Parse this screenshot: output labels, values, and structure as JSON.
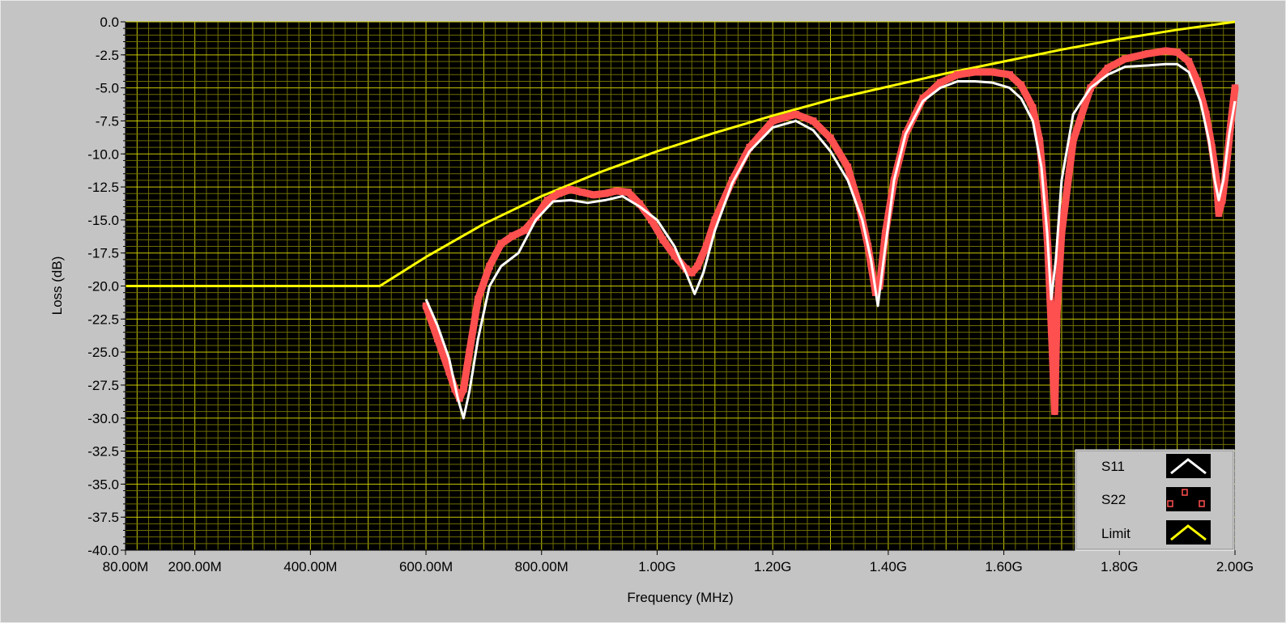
{
  "chart_data": {
    "type": "line",
    "xlabel": "Frequency (MHz)",
    "ylabel": "Loss (dB)",
    "xlim": [
      80,
      2000
    ],
    "ylim": [
      -40,
      0
    ],
    "grid": true,
    "legend_position": "bottom-right",
    "x_ticks": [
      {
        "value": 80,
        "label": "80.00M"
      },
      {
        "value": 200,
        "label": "200.00M"
      },
      {
        "value": 400,
        "label": "400.00M"
      },
      {
        "value": 600,
        "label": "600.00M"
      },
      {
        "value": 800,
        "label": "800.00M"
      },
      {
        "value": 1000,
        "label": "1.00G"
      },
      {
        "value": 1200,
        "label": "1.20G"
      },
      {
        "value": 1400,
        "label": "1.40G"
      },
      {
        "value": 1600,
        "label": "1.60G"
      },
      {
        "value": 1800,
        "label": "1.80G"
      },
      {
        "value": 2000,
        "label": "2.00G"
      }
    ],
    "y_ticks": [
      {
        "value": 0,
        "label": "0.0"
      },
      {
        "value": -2.5,
        "label": "-2.5"
      },
      {
        "value": -5,
        "label": "-5.0"
      },
      {
        "value": -7.5,
        "label": "-7.5"
      },
      {
        "value": -10,
        "label": "-10.0"
      },
      {
        "value": -12.5,
        "label": "-12.5"
      },
      {
        "value": -15,
        "label": "-15.0"
      },
      {
        "value": -17.5,
        "label": "-17.5"
      },
      {
        "value": -20,
        "label": "-20.0"
      },
      {
        "value": -22.5,
        "label": "-22.5"
      },
      {
        "value": -25,
        "label": "-25.0"
      },
      {
        "value": -27.5,
        "label": "-27.5"
      },
      {
        "value": -30,
        "label": "-30.0"
      },
      {
        "value": -32.5,
        "label": "-32.5"
      },
      {
        "value": -35,
        "label": "-35.0"
      },
      {
        "value": -37.5,
        "label": "-37.5"
      },
      {
        "value": -40,
        "label": "-40.0"
      }
    ],
    "series": [
      {
        "name": "S11",
        "color": "#ffffff",
        "style": "line",
        "x": [
          600,
          620,
          640,
          655,
          665,
          675,
          690,
          710,
          730,
          760,
          790,
          820,
          850,
          880,
          910,
          940,
          970,
          1000,
          1030,
          1050,
          1065,
          1080,
          1100,
          1130,
          1160,
          1200,
          1240,
          1270,
          1300,
          1330,
          1355,
          1370,
          1382,
          1392,
          1410,
          1430,
          1460,
          1490,
          1520,
          1550,
          1580,
          1610,
          1630,
          1650,
          1665,
          1675,
          1682,
          1690,
          1700,
          1720,
          1750,
          1780,
          1810,
          1850,
          1880,
          1900,
          1920,
          1940,
          1955,
          1965,
          1972,
          1980,
          1990,
          2000
        ],
        "y": [
          -21,
          -23,
          -25.5,
          -28.5,
          -30,
          -28,
          -24,
          -20,
          -18.5,
          -17.5,
          -15,
          -13.6,
          -13.5,
          -13.7,
          -13.5,
          -13.2,
          -14,
          -15,
          -17,
          -19,
          -20.6,
          -19,
          -15.8,
          -12.2,
          -9.8,
          -8,
          -7.5,
          -8.2,
          -9.8,
          -12,
          -15,
          -18,
          -21.5,
          -18,
          -12,
          -8.5,
          -6,
          -5,
          -4.5,
          -4.5,
          -4.6,
          -5,
          -5.8,
          -7.5,
          -11,
          -16,
          -21,
          -18,
          -12,
          -7,
          -5,
          -4,
          -3.4,
          -3.3,
          -3.2,
          -3.2,
          -3.8,
          -6,
          -9,
          -12,
          -13.5,
          -12,
          -8.5,
          -6
        ]
      },
      {
        "name": "S22",
        "color": "#ff5050",
        "style": "markers",
        "x": [
          600,
          620,
          640,
          650,
          658,
          665,
          675,
          690,
          710,
          730,
          750,
          770,
          790,
          810,
          830,
          850,
          870,
          890,
          910,
          930,
          950,
          970,
          990,
          1010,
          1030,
          1050,
          1060,
          1070,
          1085,
          1100,
          1130,
          1160,
          1200,
          1240,
          1270,
          1300,
          1330,
          1350,
          1365,
          1378,
          1385,
          1395,
          1410,
          1430,
          1460,
          1490,
          1520,
          1550,
          1580,
          1610,
          1630,
          1650,
          1662,
          1670,
          1676,
          1680,
          1684,
          1688,
          1692,
          1700,
          1720,
          1750,
          1780,
          1810,
          1850,
          1880,
          1900,
          1920,
          1935,
          1950,
          1960,
          1968,
          1972,
          1978,
          1985,
          1992,
          2000
        ],
        "y": [
          -21.5,
          -24,
          -26.5,
          -27.8,
          -28.5,
          -27.8,
          -25,
          -21,
          -18.5,
          -16.8,
          -16.2,
          -15.8,
          -14.8,
          -13.5,
          -13,
          -12.7,
          -12.9,
          -13.1,
          -13,
          -12.8,
          -12.9,
          -13.8,
          -15,
          -16.5,
          -17.7,
          -18.7,
          -19,
          -18.5,
          -17,
          -15,
          -12,
          -9.5,
          -7.5,
          -7,
          -7.5,
          -8.8,
          -11,
          -14,
          -17,
          -20.5,
          -20,
          -16,
          -12,
          -8.5,
          -5.8,
          -4.6,
          -4,
          -3.8,
          -3.8,
          -4,
          -4.8,
          -6.5,
          -9,
          -13,
          -17,
          -21,
          -25,
          -29.5,
          -22,
          -16,
          -9,
          -5,
          -3.5,
          -2.8,
          -2.4,
          -2.2,
          -2.3,
          -3,
          -4.5,
          -7,
          -9.5,
          -12,
          -14.5,
          -13.5,
          -11,
          -8,
          -5
        ]
      },
      {
        "name": "Limit",
        "color": "#ffff00",
        "style": "line",
        "x": [
          80,
          100,
          150,
          200,
          250,
          300,
          350,
          400,
          450,
          500,
          520,
          600,
          700,
          800,
          900,
          1000,
          1100,
          1200,
          1300,
          1400,
          1500,
          1600,
          1700,
          1800,
          1900,
          2000
        ],
        "y": [
          -20,
          -20,
          -20,
          -20,
          -20,
          -20,
          -20,
          -20,
          -20,
          -20,
          -20,
          -17.8,
          -15.3,
          -13.2,
          -11.4,
          -9.8,
          -8.4,
          -7.1,
          -5.9,
          -4.9,
          -3.9,
          -3,
          -2.1,
          -1.3,
          -0.6,
          0
        ]
      }
    ]
  }
}
